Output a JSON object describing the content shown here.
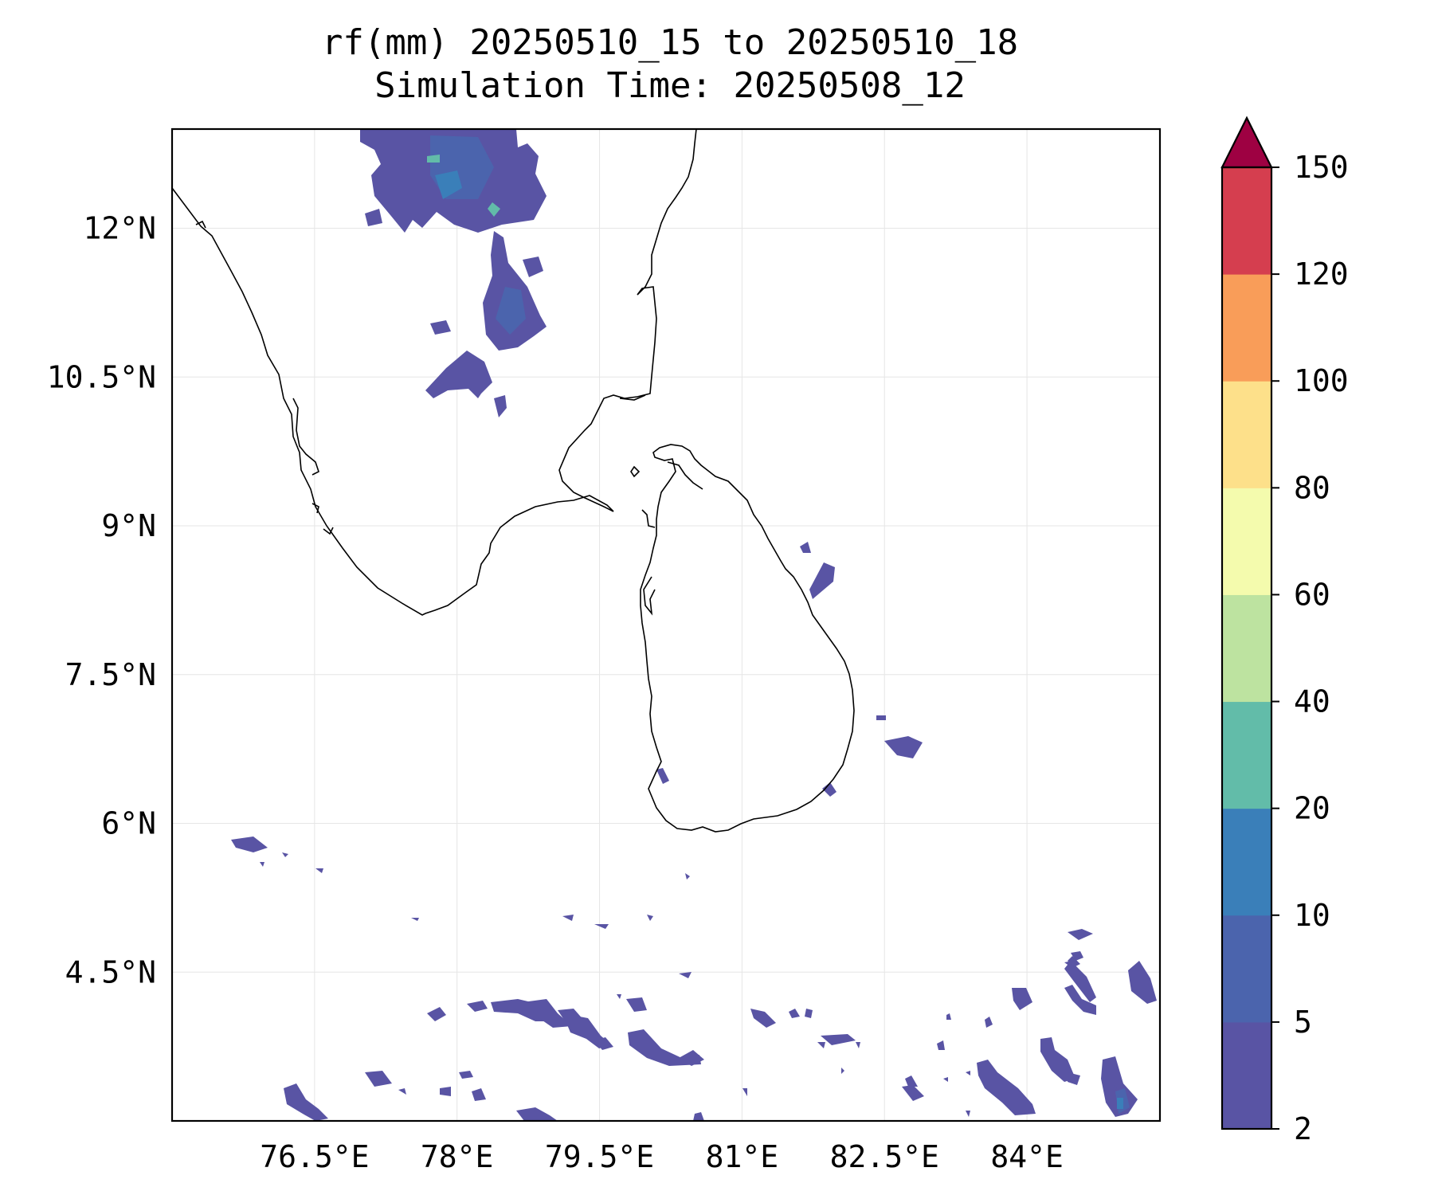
{
  "title": {
    "line1": "rf(mm) 20250510_15 to 20250510_18",
    "line2": "Simulation Time: 20250508_12"
  },
  "map": {
    "lon_range": [
      75.0,
      85.4
    ],
    "lat_range": [
      3.0,
      13.0
    ],
    "lon_ticks": [
      {
        "value": 76.5,
        "label": "76.5°E"
      },
      {
        "value": 78.0,
        "label": "78°E"
      },
      {
        "value": 79.5,
        "label": "79.5°E"
      },
      {
        "value": 81.0,
        "label": "81°E"
      },
      {
        "value": 82.5,
        "label": "82.5°E"
      },
      {
        "value": 84.0,
        "label": "84°E"
      }
    ],
    "lat_ticks": [
      {
        "value": 12.0,
        "label": "12°N"
      },
      {
        "value": 10.5,
        "label": "10.5°N"
      },
      {
        "value": 9.0,
        "label": "9°N"
      },
      {
        "value": 7.5,
        "label": "7.5°N"
      },
      {
        "value": 6.0,
        "label": "6°N"
      },
      {
        "value": 4.5,
        "label": "4.5°N"
      }
    ],
    "grid": true
  },
  "colorbar": {
    "levels": [
      {
        "value": 2,
        "label": "2"
      },
      {
        "value": 5,
        "label": "5"
      },
      {
        "value": 10,
        "label": "10"
      },
      {
        "value": 20,
        "label": "20"
      },
      {
        "value": 40,
        "label": "40"
      },
      {
        "value": 60,
        "label": "60"
      },
      {
        "value": 80,
        "label": "80"
      },
      {
        "value": 100,
        "label": "100"
      },
      {
        "value": 120,
        "label": "120"
      },
      {
        "value": 150,
        "label": "150"
      }
    ],
    "colors": [
      "#5954a4",
      "#4b64ad",
      "#3a7fb9",
      "#62bca9",
      "#bde3a0",
      "#f4fbad",
      "#fde08a",
      "#f99d59",
      "#d53e4f"
    ],
    "extend_color": "#9e0142"
  }
}
